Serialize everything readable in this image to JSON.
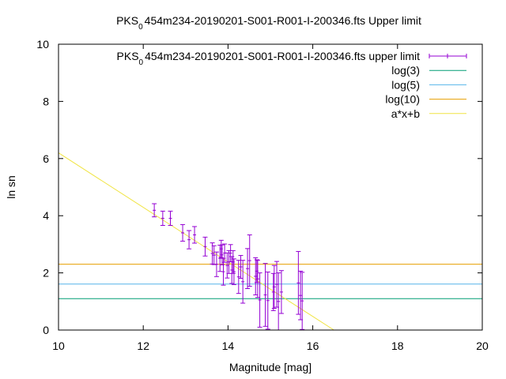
{
  "chart_data": {
    "type": "scatter",
    "title": "PKS₀454m234-20190201-S001-R001-I-200346.fts Upper limit",
    "title_parts": {
      "prefix": "PKS",
      "subscript": "0",
      "suffix": "454m234-20190201-S001-R001-I-200346.fts Upper limit"
    },
    "xlabel": "Magnitude [mag]",
    "ylabel": "ln sn",
    "xlim": [
      10,
      20
    ],
    "ylim": [
      0,
      10
    ],
    "xticks": [
      10,
      12,
      14,
      16,
      18,
      20
    ],
    "yticks": [
      0,
      2,
      4,
      6,
      8,
      10
    ],
    "legend_position": "top-right",
    "series": [
      {
        "name": "PKS₀454m234-20190201-S001-R001-I-200346.fts upper limit",
        "legend_parts": {
          "prefix": "PKS",
          "subscript": "0",
          "suffix": "454m234-20190201-S001-R001-I-200346.fts upper limit"
        },
        "style": "yerrorbars",
        "color": "#9400d3",
        "x": [
          12.26,
          12.46,
          12.64,
          12.93,
          13.08,
          13.21,
          13.46,
          13.63,
          13.67,
          13.73,
          13.81,
          13.84,
          13.86,
          13.89,
          13.92,
          13.98,
          14.02,
          14.06,
          14.09,
          14.12,
          14.14,
          14.25,
          14.3,
          14.35,
          14.46,
          14.51,
          14.65,
          14.68,
          14.7,
          14.75,
          14.88,
          14.94,
          15.07,
          15.09,
          15.15,
          15.19,
          15.26,
          15.66,
          15.71,
          15.75
        ],
        "y": [
          4.19,
          3.91,
          3.91,
          3.4,
          3.16,
          3.33,
          2.92,
          2.68,
          2.62,
          2.3,
          2.51,
          2.84,
          2.63,
          2.04,
          2.69,
          2.26,
          2.38,
          2.69,
          2.1,
          2.38,
          2.04,
          1.86,
          2.21,
          1.69,
          2.15,
          2.43,
          1.88,
          2.06,
          1.79,
          1.05,
          1.23,
          1.03,
          1.33,
          1.51,
          1.6,
          1.0,
          1.33,
          1.65,
          1.21,
          1.02
        ],
        "yerr": [
          0.23,
          0.25,
          0.25,
          0.29,
          0.32,
          0.29,
          0.33,
          0.37,
          0.33,
          0.43,
          0.46,
          0.3,
          0.35,
          0.47,
          0.32,
          0.44,
          0.4,
          0.3,
          0.47,
          0.4,
          0.45,
          0.58,
          0.4,
          0.75,
          0.7,
          0.9,
          0.65,
          0.4,
          0.65,
          0.95,
          1.1,
          1.0,
          0.65,
          0.75,
          0.8,
          1.0,
          0.75,
          1.1,
          0.85,
          1.0
        ]
      },
      {
        "name": "log(3)",
        "style": "line",
        "function": "log(3)",
        "value": 1.0986,
        "color": "#009e73"
      },
      {
        "name": "log(5)",
        "style": "line",
        "function": "log(5)",
        "value": 1.6094,
        "color": "#56b4e9"
      },
      {
        "name": "log(10)",
        "style": "line",
        "function": "log(10)",
        "value": 2.3026,
        "color": "#e69f00"
      },
      {
        "name": "a*x+b",
        "style": "line",
        "function": "a*x+b",
        "a": -0.954,
        "b": 15.74,
        "color": "#f0e442"
      }
    ]
  }
}
